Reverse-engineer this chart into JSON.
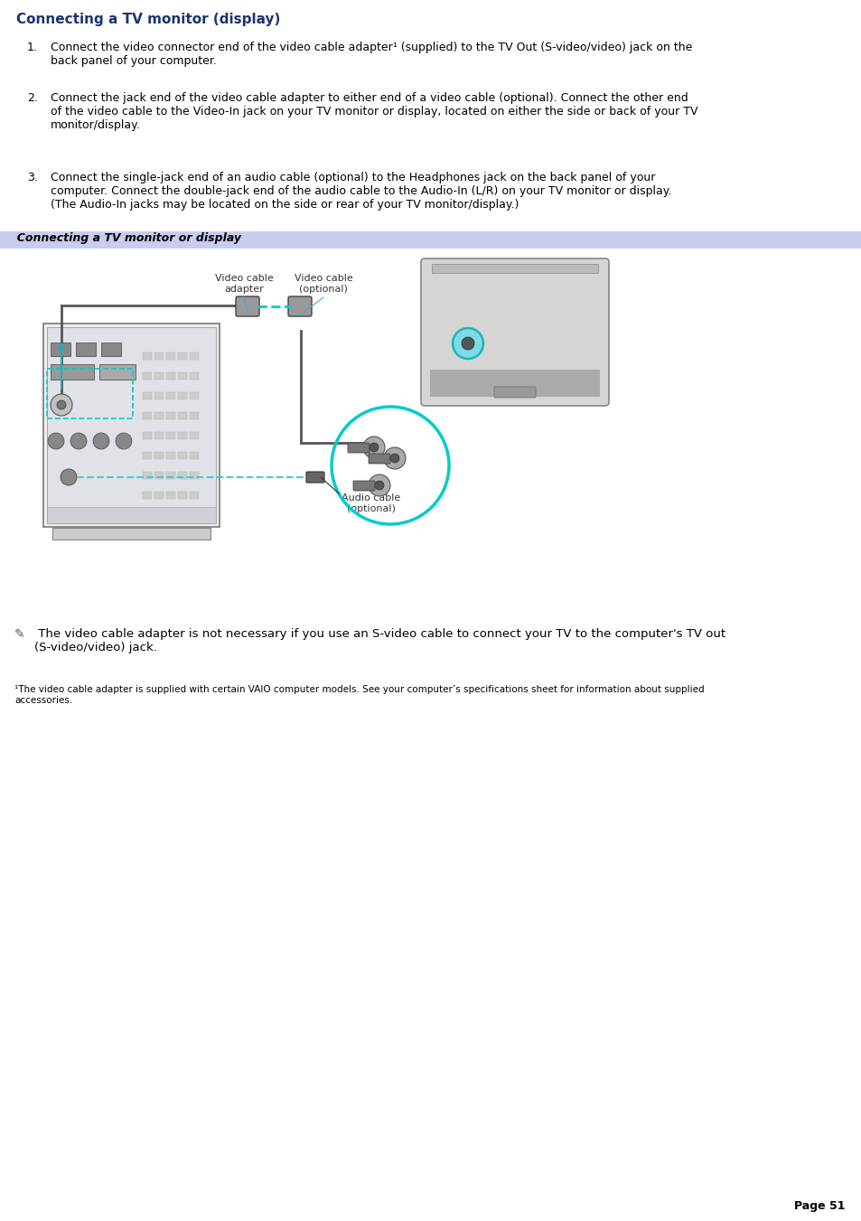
{
  "title": "Connecting a TV monitor (display)",
  "title_color": "#1a3570",
  "bg_color": "#ffffff",
  "step1": "Connect the video connector end of the video cable adapter¹ (supplied) to the TV Out (S-video/video) jack on the\nback panel of your computer.",
  "step2": "Connect the jack end of the video cable adapter to either end of a video cable (optional). Connect the other end\nof the video cable to the Video-In jack on your TV monitor or display, located on either the side or back of your TV\nmonitor/display.",
  "step3": "Connect the single-jack end of an audio cable (optional) to the Headphones jack on the back panel of your\ncomputer. Connect the double-jack end of the audio cable to the Audio-In (L/R) on your TV monitor or display.\n(The Audio-In jacks may be located on the side or rear of your TV monitor/display.)",
  "diagram_caption": "  Connecting a TV monitor or display",
  "diagram_caption_bg": "#c8ccee",
  "label_video_cable_adapter": "Video cable\nadapter",
  "label_video_cable_optional": "Video cable\n(optional)",
  "label_audio_cable": "Audio cable\n(optional)",
  "note_text": " The video cable adapter is not necessary if you use an S-video cable to connect your TV to the computer's TV out\n(S-video/video) jack.",
  "footnote": "¹The video cable adapter is supplied with certain VAIO computer models. See your computer’s specifications sheet for information about supplied\naccessories.",
  "page_number": "Page 51",
  "body_size": 9,
  "small_size": 7.5,
  "note_size": 9.5
}
